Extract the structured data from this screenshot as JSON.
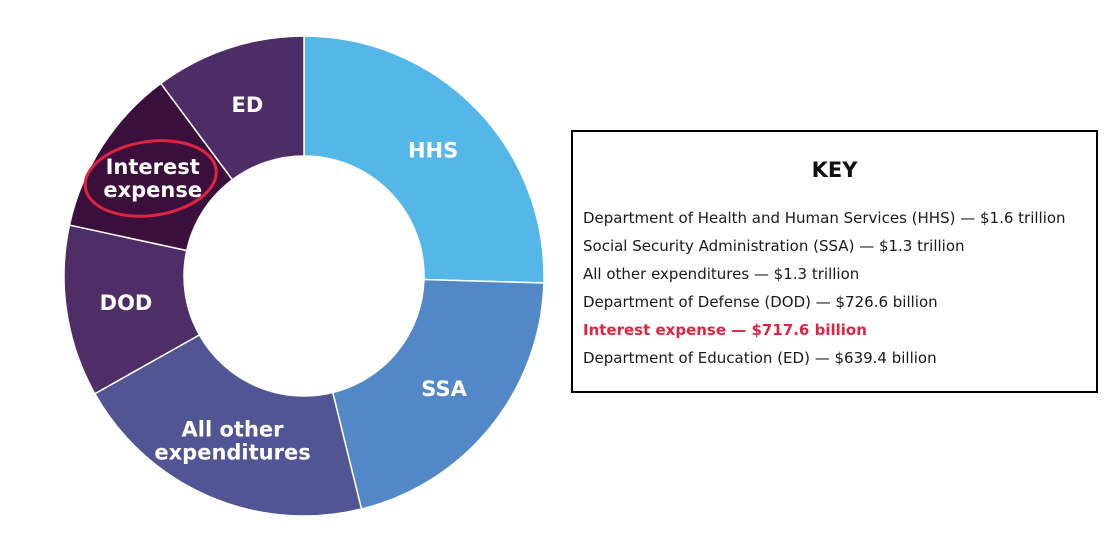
{
  "chart_data": {
    "type": "pie",
    "variant": "donut",
    "title": "",
    "series": [
      {
        "name": "Department of Health and Human Services (HHS)",
        "label": "HHS",
        "value": 1600,
        "display": "$1.6 trillion",
        "color": "#55b6e8",
        "label_lines": [
          "HHS"
        ]
      },
      {
        "name": "Social Security Administration (SSA)",
        "label": "SSA",
        "value": 1300,
        "display": "$1.3 trillion",
        "color": "#5388c8",
        "label_lines": [
          "SSA"
        ]
      },
      {
        "name": "All other expenditures",
        "label": "All other expenditures",
        "value": 1300,
        "display": "$1.3 trillion",
        "color": "#525594",
        "label_lines": [
          "All other",
          "expenditures"
        ]
      },
      {
        "name": "Department of Defense (DOD)",
        "label": "DOD",
        "value": 726.6,
        "display": "$726.6 billion",
        "color": "#4f2d66",
        "label_lines": [
          "DOD"
        ]
      },
      {
        "name": "Interest expense",
        "label": "Interest expense",
        "value": 717.6,
        "display": "$717.6 billion",
        "color": "#3b0f3b",
        "label_lines": [
          "Interest",
          "expense"
        ],
        "highlight": true
      },
      {
        "name": "Department of Education (ED)",
        "label": "ED",
        "value": 639.4,
        "display": "$639.4 billion",
        "color": "#4e2d66",
        "label_lines": [
          "ED"
        ]
      }
    ],
    "units": "USD",
    "legend_position": "right"
  },
  "key": {
    "title": "KEY",
    "items": [
      "Department of Health and Human Services (HHS) — $1.6 trillion",
      "Social Security Administration (SSA) — $1.3 trillion",
      "All other expenditures — $1.3 trillion",
      "Department of Defense (DOD) — $726.6 billion",
      "Interest expense — $717.6 billion",
      "Department of Education (ED) — $639.4 billion"
    ],
    "highlight_index": 4
  },
  "colors": {
    "highlight": "#e0243f",
    "label_text": "#ffffff",
    "separator": "#ffffff"
  }
}
